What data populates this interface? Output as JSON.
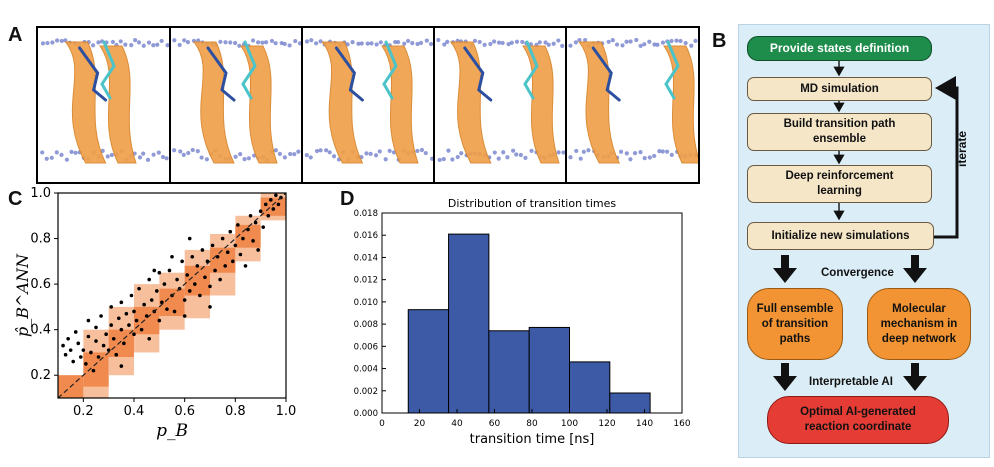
{
  "panel_labels": {
    "a": "A",
    "b": "B",
    "c": "C",
    "d": "D"
  },
  "flowchart": {
    "start": "Provide states definition",
    "md": "MD simulation",
    "build_line1": "Build  transition path",
    "build_line2": "ensemble",
    "drl_line1": "Deep reinforcement",
    "drl_line2": "learning",
    "init": "Initialize new simulations",
    "iterate": "iterate",
    "convergence": "Convergence",
    "full_line1": "Full ensemble",
    "full_line2": "of transition",
    "full_line3": "paths",
    "mol_line1": "Molecular",
    "mol_line2": "mechanism in",
    "mol_line3": "deep network",
    "interpretable": "Interpretable AI",
    "final_line1": "Optimal AI-generated",
    "final_line2": "reaction coordinate"
  },
  "colors": {
    "membrane_orange": "#f0a04a",
    "helix_dark": "#2d4fa0",
    "helix_cyan": "#4cc3c8",
    "bead": "#6a78c8",
    "bar": "#3d5aa6",
    "band": "#f7b48c",
    "band_dark": "#ef7d3c"
  },
  "chart_data": [
    {
      "type": "scatter",
      "panel": "C",
      "xlabel": "p_B",
      "ylabel": "p̂_B^ANN",
      "xlim": [
        0.1,
        1.0
      ],
      "ylim": [
        0.1,
        1.0
      ],
      "xticks": [
        "0.2",
        "0.4",
        "0.6",
        "0.8",
        "1.0"
      ],
      "yticks": [
        "0.2",
        "0.4",
        "0.6",
        "0.8",
        "1.0"
      ],
      "diagonal": true,
      "bins": [
        {
          "x0": 0.1,
          "x1": 0.2,
          "ylo": 0.1,
          "yhi": 0.2,
          "ilo": 0.1,
          "ihi": 0.2
        },
        {
          "x0": 0.2,
          "x1": 0.3,
          "ylo": 0.1,
          "yhi": 0.4,
          "ilo": 0.15,
          "ihi": 0.3
        },
        {
          "x0": 0.3,
          "x1": 0.4,
          "ylo": 0.2,
          "yhi": 0.5,
          "ilo": 0.28,
          "ihi": 0.4
        },
        {
          "x0": 0.4,
          "x1": 0.5,
          "ylo": 0.3,
          "yhi": 0.6,
          "ilo": 0.38,
          "ihi": 0.5
        },
        {
          "x0": 0.5,
          "x1": 0.6,
          "ylo": 0.4,
          "yhi": 0.65,
          "ilo": 0.46,
          "ihi": 0.58
        },
        {
          "x0": 0.6,
          "x1": 0.7,
          "ylo": 0.45,
          "yhi": 0.75,
          "ilo": 0.55,
          "ihi": 0.68
        },
        {
          "x0": 0.7,
          "x1": 0.8,
          "ylo": 0.55,
          "yhi": 0.82,
          "ilo": 0.65,
          "ihi": 0.76
        },
        {
          "x0": 0.8,
          "x1": 0.9,
          "ylo": 0.7,
          "yhi": 0.9,
          "ilo": 0.76,
          "ihi": 0.86
        },
        {
          "x0": 0.9,
          "x1": 1.0,
          "ylo": 0.88,
          "yhi": 1.0,
          "ilo": 0.9,
          "ihi": 0.98
        }
      ],
      "points": [
        [
          0.12,
          0.33
        ],
        [
          0.13,
          0.29
        ],
        [
          0.14,
          0.36
        ],
        [
          0.15,
          0.31
        ],
        [
          0.16,
          0.26
        ],
        [
          0.17,
          0.39
        ],
        [
          0.18,
          0.34
        ],
        [
          0.19,
          0.28
        ],
        [
          0.2,
          0.31
        ],
        [
          0.21,
          0.25
        ],
        [
          0.22,
          0.37
        ],
        [
          0.22,
          0.44
        ],
        [
          0.23,
          0.3
        ],
        [
          0.24,
          0.22
        ],
        [
          0.25,
          0.35
        ],
        [
          0.25,
          0.41
        ],
        [
          0.26,
          0.28
        ],
        [
          0.27,
          0.46
        ],
        [
          0.28,
          0.33
        ],
        [
          0.29,
          0.38
        ],
        [
          0.3,
          0.31
        ],
        [
          0.31,
          0.5
        ],
        [
          0.31,
          0.42
        ],
        [
          0.32,
          0.36
        ],
        [
          0.33,
          0.29
        ],
        [
          0.34,
          0.45
        ],
        [
          0.35,
          0.4
        ],
        [
          0.35,
          0.52
        ],
        [
          0.36,
          0.34
        ],
        [
          0.37,
          0.47
        ],
        [
          0.38,
          0.42
        ],
        [
          0.39,
          0.55
        ],
        [
          0.4,
          0.38
        ],
        [
          0.4,
          0.48
        ],
        [
          0.41,
          0.44
        ],
        [
          0.42,
          0.58
        ],
        [
          0.43,
          0.4
        ],
        [
          0.44,
          0.51
        ],
        [
          0.45,
          0.46
        ],
        [
          0.46,
          0.62
        ],
        [
          0.46,
          0.36
        ],
        [
          0.47,
          0.53
        ],
        [
          0.48,
          0.48
        ],
        [
          0.49,
          0.57
        ],
        [
          0.5,
          0.44
        ],
        [
          0.5,
          0.65
        ],
        [
          0.51,
          0.52
        ],
        [
          0.52,
          0.6
        ],
        [
          0.53,
          0.49
        ],
        [
          0.54,
          0.66
        ],
        [
          0.55,
          0.55
        ],
        [
          0.56,
          0.48
        ],
        [
          0.57,
          0.62
        ],
        [
          0.58,
          0.58
        ],
        [
          0.59,
          0.7
        ],
        [
          0.6,
          0.53
        ],
        [
          0.61,
          0.64
        ],
        [
          0.62,
          0.57
        ],
        [
          0.63,
          0.72
        ],
        [
          0.64,
          0.6
        ],
        [
          0.65,
          0.68
        ],
        [
          0.66,
          0.55
        ],
        [
          0.67,
          0.75
        ],
        [
          0.68,
          0.63
        ],
        [
          0.69,
          0.7
        ],
        [
          0.7,
          0.59
        ],
        [
          0.71,
          0.77
        ],
        [
          0.72,
          0.66
        ],
        [
          0.73,
          0.72
        ],
        [
          0.74,
          0.62
        ],
        [
          0.75,
          0.8
        ],
        [
          0.76,
          0.68
        ],
        [
          0.77,
          0.74
        ],
        [
          0.78,
          0.83
        ],
        [
          0.79,
          0.7
        ],
        [
          0.8,
          0.77
        ],
        [
          0.81,
          0.86
        ],
        [
          0.82,
          0.73
        ],
        [
          0.83,
          0.8
        ],
        [
          0.84,
          0.68
        ],
        [
          0.85,
          0.84
        ],
        [
          0.86,
          0.9
        ],
        [
          0.87,
          0.79
        ],
        [
          0.88,
          0.87
        ],
        [
          0.89,
          0.75
        ],
        [
          0.9,
          0.92
        ],
        [
          0.91,
          0.85
        ],
        [
          0.92,
          0.95
        ],
        [
          0.93,
          0.9
        ],
        [
          0.94,
          0.97
        ],
        [
          0.95,
          0.93
        ],
        [
          0.96,
          0.99
        ],
        [
          0.97,
          0.95
        ],
        [
          0.98,
          0.98
        ],
        [
          0.55,
          0.72
        ],
        [
          0.6,
          0.46
        ],
        [
          0.48,
          0.66
        ],
        [
          0.35,
          0.24
        ],
        [
          0.62,
          0.8
        ],
        [
          0.7,
          0.5
        ]
      ]
    },
    {
      "type": "bar",
      "panel": "D",
      "title": "Distribution of transition times",
      "xlabel": "transition time [ns]",
      "ylabel": "",
      "xlim": [
        0,
        160
      ],
      "ylim": [
        0,
        0.018
      ],
      "xticks": [
        "0",
        "20",
        "40",
        "60",
        "80",
        "100",
        "120",
        "140",
        "160"
      ],
      "yticks": [
        "0.000",
        "0.002",
        "0.004",
        "0.006",
        "0.008",
        "0.010",
        "0.012",
        "0.014",
        "0.016",
        "0.018"
      ],
      "bins": [
        {
          "x0": 14,
          "x1": 35.5,
          "value": 0.0093
        },
        {
          "x0": 35.5,
          "x1": 57,
          "value": 0.0161
        },
        {
          "x0": 57,
          "x1": 78.5,
          "value": 0.0074
        },
        {
          "x0": 78.5,
          "x1": 100,
          "value": 0.0077
        },
        {
          "x0": 100,
          "x1": 121.5,
          "value": 0.0046
        },
        {
          "x0": 121.5,
          "x1": 143,
          "value": 0.0018
        }
      ]
    }
  ]
}
